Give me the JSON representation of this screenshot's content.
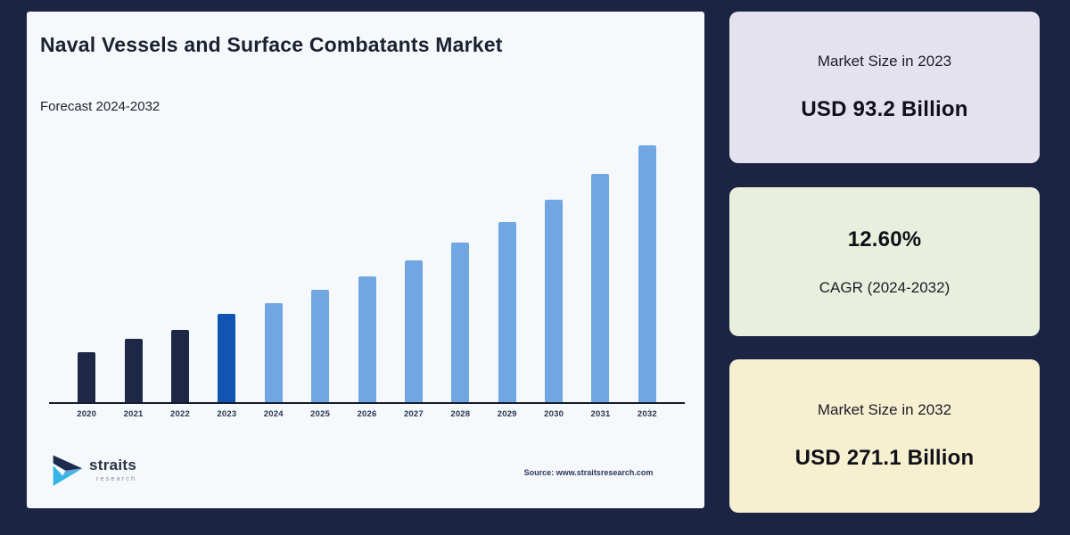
{
  "window": {
    "background_color": "#1b2443",
    "panel_background": "#f6f9fc"
  },
  "chart_panel": {
    "title": "Naval Vessels and Surface Combatants Market",
    "subtitle": "Forecast 2024-2032",
    "source": "Source: www.straitsresearch.com",
    "logo": {
      "name": "straits",
      "sub": "research",
      "colors": {
        "navy": "#1d2b4f",
        "mid": "#5ba7dd",
        "cyan": "#35b5e5"
      }
    }
  },
  "chart_data": {
    "type": "bar",
    "title": "Naval Vessels and Surface Combatants Market",
    "subtitle": "Forecast 2024-2032",
    "unit": "USD Billion",
    "categories": [
      "2020",
      "2021",
      "2022",
      "2023",
      "2024",
      "2025",
      "2026",
      "2027",
      "2028",
      "2029",
      "2030",
      "2031",
      "2032"
    ],
    "values": [
      53,
      67,
      76,
      93.2,
      104.9,
      118.2,
      133.0,
      149.8,
      168.7,
      189.9,
      213.9,
      240.8,
      271.1
    ],
    "styles": [
      "historical",
      "historical",
      "historical",
      "base_year",
      "forecast",
      "forecast",
      "forecast",
      "forecast",
      "forecast",
      "forecast",
      "forecast",
      "forecast",
      "forecast"
    ],
    "colors": {
      "historical": "#1c2846",
      "base_year": "#1155b4",
      "forecast": "#70a6e2"
    },
    "xlabel": "",
    "ylabel": "",
    "ylim": [
      0,
      290
    ],
    "grid": false,
    "legend_position": "none",
    "axis_line_color": "#161b2b"
  },
  "cards": [
    {
      "label": "Market Size in 2023",
      "value": "USD 93.2 Billion",
      "bg": "#e5e2ef"
    },
    {
      "value": "12.60%",
      "label": "CAGR (2024-2032)",
      "bg": "#e9efdd"
    },
    {
      "label": "Market Size in 2032",
      "value": "USD 271.1 Billion",
      "bg": "#f6efd0"
    }
  ]
}
